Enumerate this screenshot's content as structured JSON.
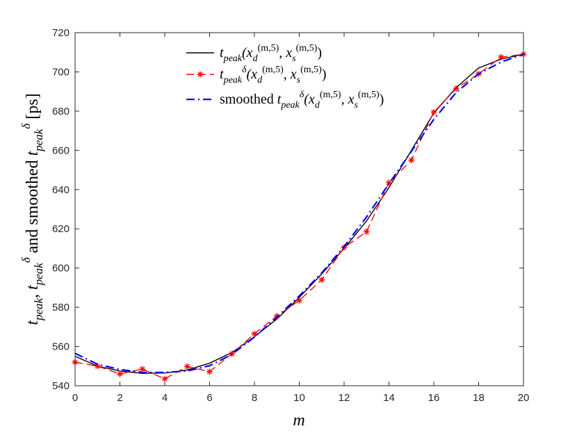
{
  "chart_data": {
    "type": "line",
    "title": "",
    "xlabel": "m",
    "ylabel_parts": [
      "t",
      "peak",
      ", ",
      "t",
      "peak",
      "δ",
      " and smoothed ",
      "t",
      "peak",
      "δ",
      " [ps]"
    ],
    "xlim": [
      0,
      20
    ],
    "ylim": [
      540,
      720
    ],
    "xticks": [
      0,
      2,
      4,
      6,
      8,
      10,
      12,
      14,
      16,
      18,
      20
    ],
    "yticks": [
      540,
      560,
      580,
      600,
      620,
      640,
      660,
      680,
      700,
      720
    ],
    "grid": false,
    "legend_position": "top-center",
    "x": [
      0,
      1,
      2,
      3,
      4,
      5,
      6,
      7,
      8,
      9,
      10,
      11,
      12,
      13,
      14,
      15,
      16,
      17,
      18,
      19,
      20
    ],
    "series": [
      {
        "legend_parts": [
          "t",
          "peak",
          "(x",
          "d",
          "(m,5)",
          ", x",
          "s",
          "(m,5)",
          ")"
        ],
        "color": "#000000",
        "style": "solid",
        "marker": "none",
        "values": [
          555,
          550,
          547.5,
          546.3,
          546.5,
          548,
          551.5,
          557,
          565,
          574,
          585,
          597,
          610,
          624,
          641,
          660,
          679,
          692,
          702,
          706.5,
          709
        ]
      },
      {
        "legend_parts": [
          "t",
          "peak",
          "δ",
          "(x",
          "d",
          "(m,5)",
          ", x",
          "s",
          "(m,5)",
          ")"
        ],
        "color": "#ff0000",
        "style": "dashed",
        "marker": "asterisk",
        "values": [
          552,
          550,
          546,
          548.5,
          543.5,
          549.8,
          547.2,
          556.3,
          566.5,
          575.5,
          583.5,
          594,
          610.5,
          618.5,
          643.5,
          655,
          679.5,
          691.5,
          699,
          707.5,
          709
        ]
      },
      {
        "legend_parts": [
          "smoothed ",
          "t",
          "peak",
          "δ",
          "(x",
          "d",
          "(m,5)",
          ", x",
          "s",
          "(m,5)",
          ")"
        ],
        "color": "#0000ff",
        "style": "dashdot",
        "marker": "none",
        "values": [
          556.5,
          551,
          548.3,
          546.8,
          546.8,
          547.5,
          550.2,
          556,
          564.8,
          575,
          585.8,
          597.5,
          611,
          626,
          643,
          659.5,
          675.8,
          689.5,
          699,
          705,
          709
        ]
      }
    ]
  }
}
